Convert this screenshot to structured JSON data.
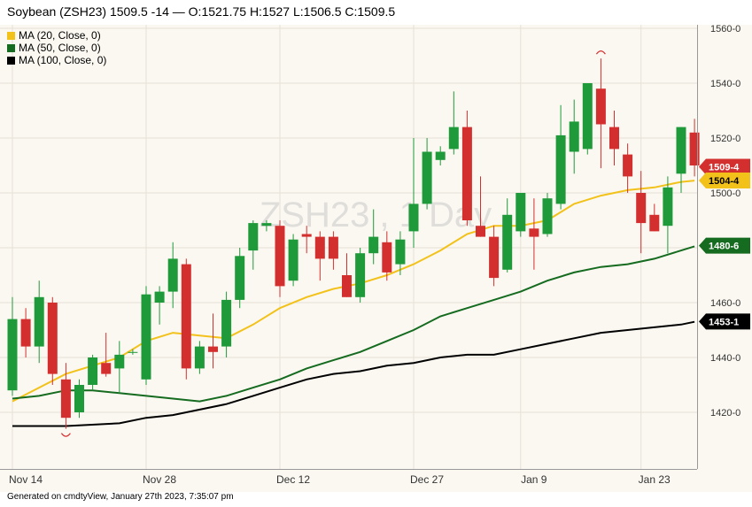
{
  "header": {
    "title": "Soybean (ZSH23) 1509.5 -14 — O:1521.75 H:1527 L:1506.5 C:1509.5"
  },
  "watermark": "ZSH23 , 1 Day",
  "footer": {
    "text": "Generated on cmdtyView, January 27th 2023, 7:35:07 pm"
  },
  "colors": {
    "up": "#1f9a3a",
    "down": "#d42f2f",
    "ma20": "#f2c21b",
    "ma50": "#156b1f",
    "ma100": "#000000",
    "background": "#fbf8f1",
    "grid": "#e6e1d6"
  },
  "chart_data": {
    "type": "candlestick",
    "ylim": [
      1400,
      1560
    ],
    "y_ticks": [
      1420,
      1440,
      1460,
      1480,
      1500,
      1520,
      1540,
      1560
    ],
    "y_tick_labels": [
      "1420-0",
      "1440-0",
      "1460-0",
      "1480-0",
      "1500-0",
      "1520-0",
      "1540-0",
      "1560-0"
    ],
    "x_tick_labels": [
      {
        "label": "Nov 14",
        "index": 0
      },
      {
        "label": "Nov 28",
        "index": 10
      },
      {
        "label": "Dec 12",
        "index": 20
      },
      {
        "label": "Dec 27",
        "index": 30
      },
      {
        "label": "Jan 9",
        "index": 38
      },
      {
        "label": "Jan 23",
        "index": 47
      }
    ],
    "candles": [
      {
        "o": 1428,
        "h": 1462,
        "l": 1426,
        "c": 1454
      },
      {
        "o": 1454,
        "h": 1458,
        "l": 1440,
        "c": 1444
      },
      {
        "o": 1444,
        "h": 1468,
        "l": 1438,
        "c": 1462
      },
      {
        "o": 1460,
        "h": 1462,
        "l": 1430,
        "c": 1434
      },
      {
        "o": 1432,
        "h": 1438,
        "l": 1414,
        "c": 1418
      },
      {
        "o": 1420,
        "h": 1432,
        "l": 1418,
        "c": 1430
      },
      {
        "o": 1430,
        "h": 1441,
        "l": 1428,
        "c": 1440
      },
      {
        "o": 1438,
        "h": 1449,
        "l": 1433,
        "c": 1434
      },
      {
        "o": 1436,
        "h": 1446,
        "l": 1427,
        "c": 1441
      },
      {
        "o": 1442,
        "h": 1443,
        "l": 1441,
        "c": 1442
      },
      {
        "o": 1432,
        "h": 1466,
        "l": 1430,
        "c": 1463
      },
      {
        "o": 1460,
        "h": 1466,
        "l": 1452,
        "c": 1464
      },
      {
        "o": 1464,
        "h": 1482,
        "l": 1458,
        "c": 1476
      },
      {
        "o": 1474,
        "h": 1476,
        "l": 1432,
        "c": 1436
      },
      {
        "o": 1436,
        "h": 1446,
        "l": 1434,
        "c": 1444
      },
      {
        "o": 1444,
        "h": 1456,
        "l": 1436,
        "c": 1442
      },
      {
        "o": 1444,
        "h": 1464,
        "l": 1440,
        "c": 1461
      },
      {
        "o": 1461,
        "h": 1480,
        "l": 1458,
        "c": 1477
      },
      {
        "o": 1479,
        "h": 1490,
        "l": 1472,
        "c": 1489
      },
      {
        "o": 1488,
        "h": 1490,
        "l": 1486,
        "c": 1489
      },
      {
        "o": 1488,
        "h": 1490,
        "l": 1462,
        "c": 1466
      },
      {
        "o": 1468,
        "h": 1485,
        "l": 1466,
        "c": 1483
      },
      {
        "o": 1485,
        "h": 1488,
        "l": 1478,
        "c": 1484
      },
      {
        "o": 1484,
        "h": 1486,
        "l": 1468,
        "c": 1476
      },
      {
        "o": 1484,
        "h": 1486,
        "l": 1472,
        "c": 1476
      },
      {
        "o": 1470,
        "h": 1478,
        "l": 1462,
        "c": 1462
      },
      {
        "o": 1462,
        "h": 1480,
        "l": 1460,
        "c": 1478
      },
      {
        "o": 1478,
        "h": 1494,
        "l": 1474,
        "c": 1484
      },
      {
        "o": 1482,
        "h": 1486,
        "l": 1468,
        "c": 1471
      },
      {
        "o": 1474,
        "h": 1486,
        "l": 1470,
        "c": 1483
      },
      {
        "o": 1486,
        "h": 1520,
        "l": 1480,
        "c": 1496
      },
      {
        "o": 1496,
        "h": 1520,
        "l": 1494,
        "c": 1515
      },
      {
        "o": 1512,
        "h": 1517,
        "l": 1510,
        "c": 1515
      },
      {
        "o": 1516,
        "h": 1537,
        "l": 1514,
        "c": 1524
      },
      {
        "o": 1524,
        "h": 1530,
        "l": 1488,
        "c": 1490
      },
      {
        "o": 1488,
        "h": 1506,
        "l": 1484,
        "c": 1484
      },
      {
        "o": 1484,
        "h": 1488,
        "l": 1466,
        "c": 1469
      },
      {
        "o": 1472,
        "h": 1498,
        "l": 1471,
        "c": 1492
      },
      {
        "o": 1486,
        "h": 1500,
        "l": 1484,
        "c": 1500
      },
      {
        "o": 1487,
        "h": 1498,
        "l": 1472,
        "c": 1484
      },
      {
        "o": 1485,
        "h": 1500,
        "l": 1484,
        "c": 1498
      },
      {
        "o": 1496,
        "h": 1532,
        "l": 1494,
        "c": 1521
      },
      {
        "o": 1515,
        "h": 1534,
        "l": 1507,
        "c": 1526
      },
      {
        "o": 1516,
        "h": 1540,
        "l": 1514,
        "c": 1540
      },
      {
        "o": 1538,
        "h": 1549,
        "l": 1509,
        "c": 1525
      },
      {
        "o": 1524,
        "h": 1530,
        "l": 1510,
        "c": 1516
      },
      {
        "o": 1514,
        "h": 1518,
        "l": 1500,
        "c": 1506
      },
      {
        "o": 1500,
        "h": 1508,
        "l": 1478,
        "c": 1489
      },
      {
        "o": 1492,
        "h": 1496,
        "l": 1486,
        "c": 1486
      },
      {
        "o": 1488,
        "h": 1506,
        "l": 1478,
        "c": 1502
      },
      {
        "o": 1507,
        "h": 1524,
        "l": 1500,
        "c": 1524
      },
      {
        "o": 1522,
        "h": 1527,
        "l": 1506,
        "c": 1510
      }
    ],
    "markers": [
      {
        "index": 4,
        "position": "low"
      },
      {
        "index": 44,
        "position": "high"
      }
    ],
    "moving_averages": [
      {
        "name": "MA (20, Close, 0)",
        "color_key": "ma20",
        "points": [
          [
            0,
            1424
          ],
          [
            4,
            1434
          ],
          [
            8,
            1440
          ],
          [
            10,
            1446
          ],
          [
            12,
            1449
          ],
          [
            14,
            1448
          ],
          [
            16,
            1447
          ],
          [
            18,
            1452
          ],
          [
            20,
            1458
          ],
          [
            22,
            1462
          ],
          [
            24,
            1465
          ],
          [
            26,
            1467
          ],
          [
            28,
            1470
          ],
          [
            30,
            1474
          ],
          [
            32,
            1479
          ],
          [
            34,
            1485
          ],
          [
            36,
            1488
          ],
          [
            38,
            1488
          ],
          [
            40,
            1490
          ],
          [
            42,
            1496
          ],
          [
            44,
            1499
          ],
          [
            46,
            1501
          ],
          [
            48,
            1502
          ],
          [
            50,
            1504
          ],
          [
            51,
            1504.5
          ]
        ]
      },
      {
        "name": "MA (50, Close, 0)",
        "color_key": "ma50",
        "points": [
          [
            0,
            1425
          ],
          [
            2,
            1426
          ],
          [
            4,
            1428
          ],
          [
            6,
            1428
          ],
          [
            8,
            1427
          ],
          [
            10,
            1426
          ],
          [
            12,
            1425
          ],
          [
            14,
            1424
          ],
          [
            16,
            1426
          ],
          [
            18,
            1429
          ],
          [
            20,
            1432
          ],
          [
            22,
            1436
          ],
          [
            24,
            1439
          ],
          [
            26,
            1442
          ],
          [
            28,
            1446
          ],
          [
            30,
            1450
          ],
          [
            32,
            1455
          ],
          [
            34,
            1458
          ],
          [
            36,
            1461
          ],
          [
            38,
            1464
          ],
          [
            40,
            1468
          ],
          [
            42,
            1471
          ],
          [
            44,
            1473
          ],
          [
            46,
            1474
          ],
          [
            48,
            1476
          ],
          [
            50,
            1479
          ],
          [
            51,
            1480.5
          ]
        ]
      },
      {
        "name": "MA (100, Close, 0)",
        "color_key": "ma100",
        "points": [
          [
            0,
            1415
          ],
          [
            4,
            1415
          ],
          [
            8,
            1416
          ],
          [
            10,
            1418
          ],
          [
            12,
            1419
          ],
          [
            16,
            1423
          ],
          [
            18,
            1426
          ],
          [
            20,
            1429
          ],
          [
            22,
            1432
          ],
          [
            24,
            1434
          ],
          [
            26,
            1435
          ],
          [
            28,
            1437
          ],
          [
            30,
            1438
          ],
          [
            32,
            1440
          ],
          [
            34,
            1441
          ],
          [
            36,
            1441
          ],
          [
            38,
            1443
          ],
          [
            40,
            1445
          ],
          [
            42,
            1447
          ],
          [
            44,
            1449
          ],
          [
            46,
            1450
          ],
          [
            48,
            1451
          ],
          [
            50,
            1452
          ],
          [
            51,
            1453
          ]
        ]
      }
    ],
    "price_tags": [
      {
        "label": "1509-4",
        "value": 1509.5,
        "color_key": "down"
      },
      {
        "label": "1504-4",
        "value": 1504.5,
        "color_key": "ma20"
      },
      {
        "label": "1480-6",
        "value": 1480.75,
        "color_key": "ma50"
      },
      {
        "label": "1453-1",
        "value": 1453.1,
        "color_key": "ma100"
      }
    ]
  }
}
